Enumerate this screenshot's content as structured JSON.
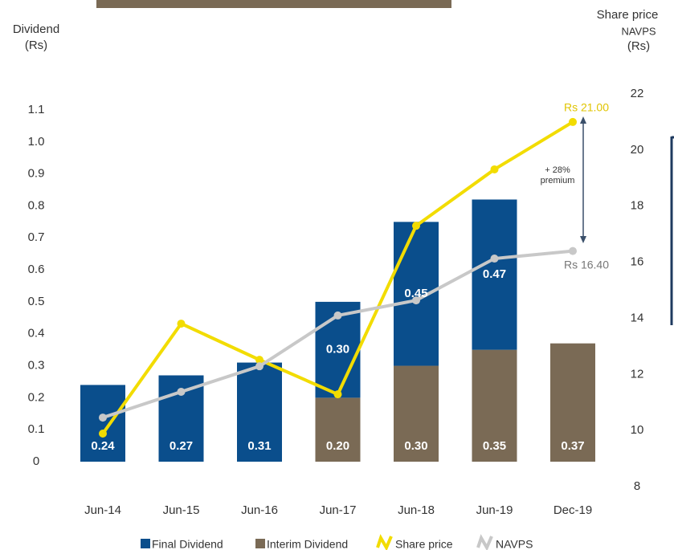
{
  "chart_data": {
    "type": "bar_line",
    "y_title": [
      "Dividend",
      "(Rs)"
    ],
    "y2_title": [
      "Share price",
      "NAVPS",
      "(Rs)"
    ],
    "categories": [
      "Jun-14",
      "Jun-15",
      "Jun-16",
      "Jun-17",
      "Jun-18",
      "Jun-19",
      "Dec-19"
    ],
    "ylim": [
      0,
      1.1
    ],
    "yticks": [
      0,
      0.1,
      0.2,
      0.3,
      0.4,
      0.5,
      0.6,
      0.7,
      0.8,
      0.9,
      {
        "value": 1,
        "label": "1.0"
      },
      1.1
    ],
    "y2lim": [
      8,
      22
    ],
    "y2ticks": [
      8,
      10,
      12,
      14,
      16,
      18,
      20,
      22
    ],
    "series": [
      {
        "name": "Interim Dividend",
        "kind": "bar",
        "color": "#7a6a55",
        "values": [
          null,
          null,
          null,
          0.2,
          0.3,
          0.35,
          0.37
        ],
        "value_labels": [
          null,
          null,
          null,
          "0.20",
          "0.30",
          "0.35",
          "0.37"
        ]
      },
      {
        "name": "Final Dividend",
        "kind": "bar",
        "color": "#0a4e8c",
        "values": [
          0.24,
          0.27,
          0.31,
          0.3,
          0.45,
          0.47,
          null
        ],
        "value_labels": [
          "0.24",
          "0.27",
          "0.31",
          "0.30",
          "0.45",
          "0.47",
          null
        ]
      },
      {
        "name": "Share price",
        "kind": "line",
        "axis": "y2",
        "color": "#f2dc00",
        "values": [
          9.89,
          13.81,
          12.52,
          11.29,
          17.3,
          19.31,
          21.0
        ],
        "value_labels": [
          null,
          null,
          null,
          null,
          null,
          null,
          "Rs 21.00"
        ]
      },
      {
        "name": "NAVPS",
        "kind": "line",
        "axis": "y2",
        "color": "#c8c8c8",
        "values": [
          10.46,
          11.38,
          12.29,
          14.1,
          14.64,
          16.13,
          16.4
        ],
        "value_labels": [
          null,
          null,
          null,
          null,
          null,
          null,
          "Rs 16.40"
        ]
      }
    ],
    "annotation": [
      "+ 28%",
      "premium"
    ]
  }
}
